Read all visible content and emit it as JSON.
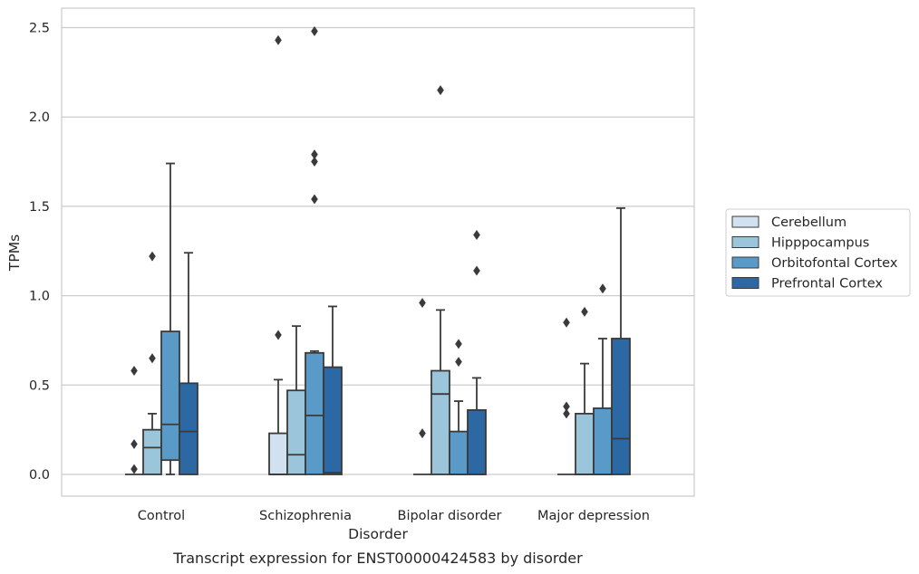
{
  "chart_data": {
    "type": "box",
    "title": "",
    "caption": "Transcript expression for ENST00000424583 by disorder",
    "xlabel": "Disorder",
    "ylabel": "TPMs",
    "ylim": [
      -0.12,
      2.61
    ],
    "yticks": [
      0.0,
      0.5,
      1.0,
      1.5,
      2.0,
      2.5
    ],
    "ytick_labels": [
      "0.0",
      "0.5",
      "1.0",
      "1.5",
      "2.0",
      "2.5"
    ],
    "grid": "horizontal",
    "legend_position": "right",
    "categories": [
      "Control",
      "Schizophrenia",
      "Bipolar disorder",
      "Major depression"
    ],
    "series": [
      {
        "name": "Cerebellum",
        "color": "#d1e1f0",
        "boxes": [
          {
            "whislo": 0.0,
            "q1": 0.0,
            "med": 0.0,
            "q3": 0.0,
            "whishi": 0.0,
            "fliers": [
              0.03,
              0.17,
              0.58
            ]
          },
          {
            "whislo": 0.0,
            "q1": 0.0,
            "med": 0.0,
            "q3": 0.23,
            "whishi": 0.53,
            "fliers": [
              0.78,
              2.43
            ]
          },
          {
            "whislo": 0.0,
            "q1": 0.0,
            "med": 0.0,
            "q3": 0.0,
            "whishi": 0.0,
            "fliers": [
              0.23,
              0.96
            ]
          },
          {
            "whislo": 0.0,
            "q1": 0.0,
            "med": 0.0,
            "q3": 0.0,
            "whishi": 0.0,
            "fliers": [
              0.34,
              0.38,
              0.85
            ]
          }
        ]
      },
      {
        "name": "Hipppocampus",
        "color": "#9ac5db",
        "boxes": [
          {
            "whislo": 0.0,
            "q1": 0.0,
            "med": 0.15,
            "q3": 0.25,
            "whishi": 0.34,
            "fliers": [
              0.65,
              1.22
            ]
          },
          {
            "whislo": 0.0,
            "q1": 0.0,
            "med": 0.11,
            "q3": 0.47,
            "whishi": 0.83,
            "fliers": []
          },
          {
            "whislo": 0.0,
            "q1": 0.0,
            "med": 0.45,
            "q3": 0.58,
            "whishi": 0.92,
            "fliers": [
              2.15
            ]
          },
          {
            "whislo": 0.0,
            "q1": 0.0,
            "med": 0.0,
            "q3": 0.34,
            "whishi": 0.62,
            "fliers": [
              0.91
            ]
          }
        ]
      },
      {
        "name": "Orbitofontal Cortex",
        "color": "#5a9ac8",
        "boxes": [
          {
            "whislo": 0.0,
            "q1": 0.08,
            "med": 0.28,
            "q3": 0.8,
            "whishi": 1.74,
            "fliers": []
          },
          {
            "whislo": 0.0,
            "q1": 0.0,
            "med": 0.33,
            "q3": 0.68,
            "whishi": 0.69,
            "fliers": [
              1.54,
              1.75,
              1.79,
              2.48
            ]
          },
          {
            "whislo": 0.0,
            "q1": 0.0,
            "med": 0.0,
            "q3": 0.24,
            "whishi": 0.41,
            "fliers": [
              0.63,
              0.73
            ]
          },
          {
            "whislo": 0.0,
            "q1": 0.0,
            "med": 0.0,
            "q3": 0.37,
            "whishi": 0.76,
            "fliers": [
              1.04
            ]
          }
        ]
      },
      {
        "name": "Prefrontal Cortex",
        "color": "#2c68a4",
        "boxes": [
          {
            "whislo": 0.0,
            "q1": 0.0,
            "med": 0.24,
            "q3": 0.51,
            "whishi": 1.24,
            "fliers": []
          },
          {
            "whislo": 0.0,
            "q1": 0.0,
            "med": 0.01,
            "q3": 0.6,
            "whishi": 0.94,
            "fliers": []
          },
          {
            "whislo": 0.0,
            "q1": 0.0,
            "med": 0.0,
            "q3": 0.36,
            "whishi": 0.54,
            "fliers": [
              1.14,
              1.34
            ]
          },
          {
            "whislo": 0.0,
            "q1": 0.0,
            "med": 0.2,
            "q3": 0.76,
            "whishi": 1.49,
            "fliers": []
          }
        ]
      }
    ]
  }
}
